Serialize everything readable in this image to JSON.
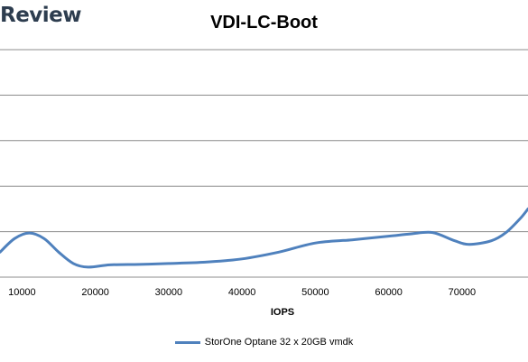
{
  "watermark": "Review",
  "chart_data": {
    "type": "line",
    "title": "VDI-LC-Boot",
    "xlabel": "IOPS",
    "ylabel": "",
    "xlim": [
      7000,
      79000
    ],
    "x_ticks": [
      10000,
      20000,
      30000,
      40000,
      50000,
      60000,
      70000
    ],
    "x_tick_labels": [
      "10000",
      "20000",
      "30000",
      "40000",
      "50000",
      "60000",
      "70000"
    ],
    "ylim": [
      0,
      5
    ],
    "y_gridlines": [
      1,
      2,
      3,
      4,
      5
    ],
    "grid": true,
    "legend_position": "bottom",
    "series": [
      {
        "name": "StorOne Optane 32 x 20GB vmdk",
        "color": "#4f81bd",
        "x": [
          7000,
          9000,
          11000,
          13000,
          15000,
          17000,
          19000,
          22000,
          26000,
          30000,
          35000,
          40000,
          45000,
          50000,
          55000,
          60000,
          63000,
          66000,
          69000,
          71000,
          74000,
          76000,
          78000,
          79000
        ],
        "values": [
          0.55,
          0.85,
          0.97,
          0.85,
          0.55,
          0.3,
          0.22,
          0.27,
          0.28,
          0.3,
          0.33,
          0.4,
          0.55,
          0.75,
          0.82,
          0.9,
          0.95,
          0.98,
          0.8,
          0.72,
          0.8,
          0.98,
          1.3,
          1.5
        ]
      }
    ]
  }
}
